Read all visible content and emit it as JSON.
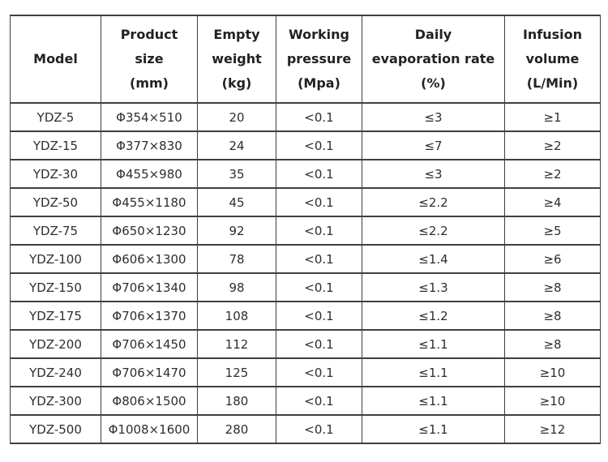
{
  "chart_data": {
    "type": "table",
    "title": "",
    "columns": [
      {
        "label": "Model"
      },
      {
        "label": "Product\nsize\n(mm)"
      },
      {
        "label": "Empty\nweight\n(kg)"
      },
      {
        "label": "Working\npressure\n(Mpa)"
      },
      {
        "label": "Daily\nevaporation rate\n(%)"
      },
      {
        "label": "Infusion\nvolume\n(L/Min)"
      }
    ],
    "rows": [
      [
        "YDZ-5",
        "Φ354×510",
        "20",
        "<0.1",
        "≤3",
        "≥1"
      ],
      [
        "YDZ-15",
        "Φ377×830",
        "24",
        "<0.1",
        "≤7",
        "≥2"
      ],
      [
        "YDZ-30",
        "Φ455×980",
        "35",
        "<0.1",
        "≤3",
        "≥2"
      ],
      [
        "YDZ-50",
        "Φ455×1180",
        "45",
        "<0.1",
        "≤2.2",
        "≥4"
      ],
      [
        "YDZ-75",
        "Φ650×1230",
        "92",
        "<0.1",
        "≤2.2",
        "≥5"
      ],
      [
        "YDZ-100",
        "Φ606×1300",
        "78",
        "<0.1",
        "≤1.4",
        "≥6"
      ],
      [
        "YDZ-150",
        "Φ706×1340",
        "98",
        "<0.1",
        "≤1.3",
        "≥8"
      ],
      [
        "YDZ-175",
        "Φ706×1370",
        "108",
        "<0.1",
        "≤1.2",
        "≥8"
      ],
      [
        "YDZ-200",
        "Φ706×1450",
        "112",
        "<0.1",
        "≤1.1",
        "≥8"
      ],
      [
        "YDZ-240",
        "Φ706×1470",
        "125",
        "<0.1",
        "≤1.1",
        "≥10"
      ],
      [
        "YDZ-300",
        "Φ806×1500",
        "180",
        "<0.1",
        "≤1.1",
        "≥10"
      ],
      [
        "YDZ-500",
        "Φ1008×1600",
        "280",
        "<0.1",
        "≤1.1",
        "≥12"
      ]
    ],
    "layout": {
      "grid": true,
      "border_color": "#3f3f3f",
      "text_color": "#2a2a2a",
      "background": "#ffffff"
    }
  }
}
